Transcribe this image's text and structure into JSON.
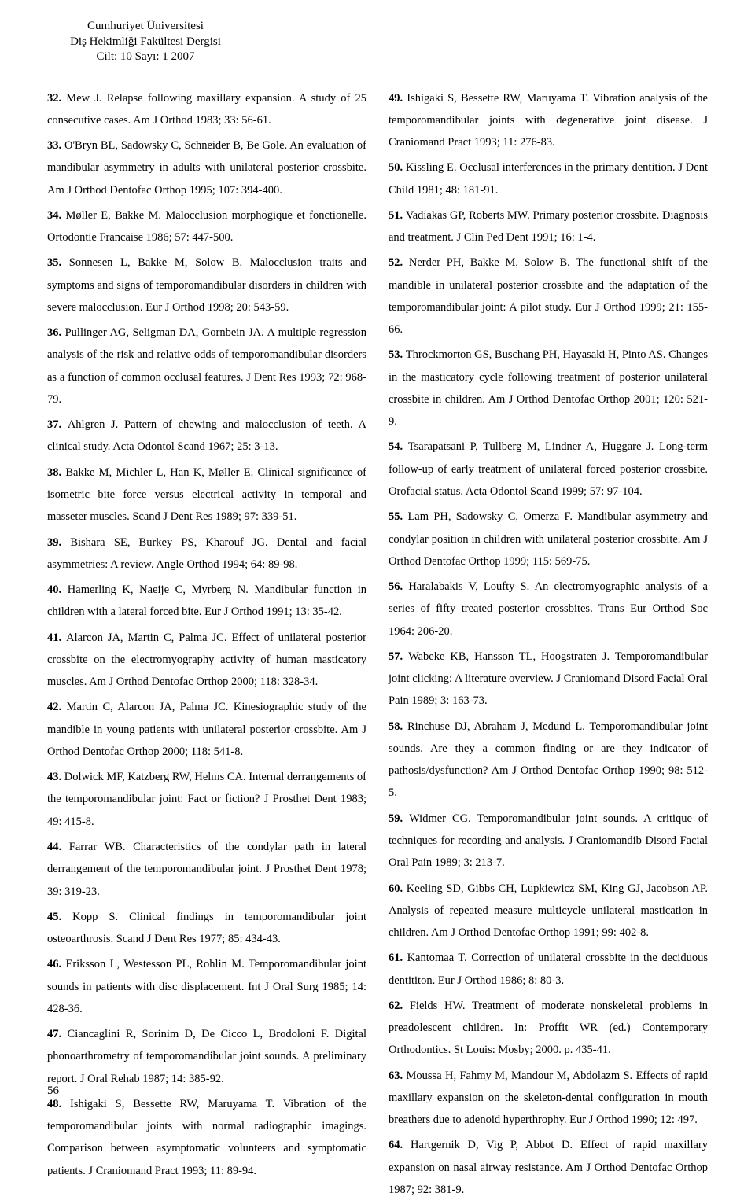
{
  "header": {
    "line1": "Cumhuriyet Üniversitesi",
    "line2": "Diş Hekimliği Fakültesi Dergisi",
    "line3": "Cilt: 10 Sayı: 1  2007"
  },
  "left": [
    {
      "n": "32.",
      "t": "Mew J. Relapse following maxillary expansion. A study of 25 consecutive cases. Am J Orthod 1983; 33: 56-61."
    },
    {
      "n": "33.",
      "t": "O'Bryn BL, Sadowsky C, Schneider B, Be Gole. An evaluation of mandibular asymmetry in adults with unilateral posterior crossbite. Am J Orthod Dentofac Orthop 1995; 107: 394-400."
    },
    {
      "n": "34.",
      "t": "Møller E, Bakke M. Malocclusion morphogique et fonctionelle. Ortodontie Francaise 1986; 57: 447-500."
    },
    {
      "n": "35.",
      "t": "Sonnesen L, Bakke M, Solow B. Malocclusion traits and symptoms and signs of temporomandibular disorders in children with severe malocclusion. Eur J Orthod 1998; 20: 543-59."
    },
    {
      "n": "36.",
      "t": "Pullinger AG, Seligman DA, Gornbein JA. A multiple regression analysis of the risk and relative odds of temporomandibular disorders as a function of common occlusal features. J Dent Res 1993; 72: 968-79."
    },
    {
      "n": "37.",
      "t": "Ahlgren J. Pattern of chewing and malocclusion of teeth. A clinical study. Acta Odontol Scand 1967; 25: 3-13."
    },
    {
      "n": "38.",
      "t": "Bakke M, Michler L, Han K, Møller E. Clinical significance of isometric bite force versus electrical activity in temporal and masseter muscles. Scand J Dent Res 1989; 97: 339-51."
    },
    {
      "n": "39.",
      "t": "Bishara SE, Burkey PS, Kharouf JG. Dental and facial asymmetries: A review. Angle Orthod 1994; 64: 89-98."
    },
    {
      "n": "40.",
      "t": "Hamerling K, Naeije C, Myrberg N. Mandibular function in children with a lateral forced bite. Eur J Orthod 1991; 13: 35-42."
    },
    {
      "n": "41.",
      "t": "Alarcon JA, Martin C, Palma JC. Effect of unilateral posterior crossbite on the electromyography activity of human masticatory muscles. Am J Orthod Dentofac Orthop 2000; 118: 328-34."
    },
    {
      "n": "42.",
      "t": "Martin C, Alarcon JA, Palma JC. Kinesiographic study of the mandible in young patients with unilateral posterior crossbite. Am J Orthod Dentofac Orthop 2000; 118: 541-8."
    },
    {
      "n": "43.",
      "t": "Dolwick MF, Katzberg RW, Helms CA. Internal derrangements of the temporomandibular joint: Fact or fiction? J Prosthet Dent 1983; 49: 415-8."
    },
    {
      "n": "44.",
      "t": "Farrar WB. Characteristics of the condylar path in lateral derrangement of the temporomandibular joint. J Prosthet Dent 1978; 39: 319-23."
    },
    {
      "n": "45.",
      "t": "Kopp S. Clinical findings in temporomandibular joint osteoarthrosis. Scand J Dent Res 1977; 85: 434-43."
    },
    {
      "n": "46.",
      "t": "Eriksson L, Westesson PL, Rohlin M. Temporomandibular joint sounds in patients with disc displacement. Int J Oral Surg 1985; 14: 428-36."
    },
    {
      "n": "47.",
      "t": "Ciancaglini R, Sorinim D, De Cicco L, Brodoloni F. Digital phonoarthrometry of temporomandibular joint sounds. A preliminary report. J Oral Rehab 1987; 14: 385-92."
    },
    {
      "n": "48.",
      "t": "Ishigaki S, Bessette RW, Maruyama T. Vibration of the temporomandibular joints with normal radiographic imagings. Comparison between asymptomatic volunteers and symptomatic patients. J Craniomand Pract 1993; 11: 89-94."
    }
  ],
  "right": [
    {
      "n": "49.",
      "t": "Ishigaki S, Bessette RW, Maruyama T. Vibration analysis of the temporomandibular joints with degenerative joint disease. J Craniomand Pract 1993; 11: 276-83."
    },
    {
      "n": "50.",
      "t": "Kissling E. Occlusal interferences in the primary dentition. J Dent Child 1981; 48: 181-91."
    },
    {
      "n": "51.",
      "t": "Vadiakas GP, Roberts MW. Primary posterior crossbite. Diagnosis and treatment. J Clin Ped Dent 1991; 16: 1-4."
    },
    {
      "n": "52.",
      "t": "Nerder PH, Bakke M, Solow B. The functional shift of the mandible in unilateral posterior crossbite and the adaptation of the temporomandibular joint: A pilot study. Eur J Orthod 1999; 21: 155-66."
    },
    {
      "n": "53.",
      "t": "Throckmorton GS, Buschang PH, Hayasaki H, Pinto AS. Changes in the masticatory cycle following treatment of posterior unilateral crossbite in children. Am J Orthod Dentofac Orthop 2001; 120: 521-9."
    },
    {
      "n": "54.",
      "t": "Tsarapatsani P, Tullberg M, Lindner A, Huggare J. Long-term follow-up of early treatment of unilateral forced posterior crossbite. Orofacial status. Acta Odontol Scand 1999; 57: 97-104."
    },
    {
      "n": "55.",
      "t": "Lam PH, Sadowsky C, Omerza F. Mandibular asymmetry and condylar position in children with unilateral posterior crossbite. Am J Orthod Dentofac Orthop 1999; 115: 569-75."
    },
    {
      "n": "56.",
      "t": "Haralabakis V, Loufty S. An electromyographic analysis of a series of fifty treated posterior crossbites. Trans Eur Orthod Soc 1964: 206-20."
    },
    {
      "n": "57.",
      "t": "Wabeke KB, Hansson TL, Hoogstraten J. Temporomandibular joint clicking: A literature overview. J Craniomand Disord Facial Oral Pain 1989; 3: 163-73."
    },
    {
      "n": "58.",
      "t": "Rinchuse DJ, Abraham J, Medund L. Temporomandibular joint sounds. Are they a common finding or are they indicator of pathosis/dysfunction? Am J Orthod Dentofac Orthop 1990; 98: 512-5."
    },
    {
      "n": "59.",
      "t": "Widmer CG. Temporomandibular joint sounds. A critique of techniques for recording and analysis. J Craniomandib Disord Facial Oral Pain 1989; 3: 213-7."
    },
    {
      "n": "60.",
      "t": "Keeling SD, Gibbs CH, Lupkiewicz SM, King GJ, Jacobson AP. Analysis of repeated measure multicycle unilateral mastication in children. Am J Orthod Dentofac Orthop 1991; 99: 402-8."
    },
    {
      "n": "61.",
      "t": "Kantomaa T. Correction of unilateral crossbite in the deciduous dentititon. Eur J Orthod 1986; 8: 80-3."
    },
    {
      "n": "62.",
      "t": "Fields HW. Treatment of moderate nonskeletal problems in preadolescent children. In: Proffit WR (ed.) Contemporary Orthodontics. St Louis: Mosby; 2000. p. 435-41."
    },
    {
      "n": "63.",
      "t": "Moussa H, Fahmy M, Mandour M, Abdolazm S. Effects of rapid maxillary expansion on the skeleton-dental configuration in mouth breathers due to adenoid hyperthrophy. Eur J Orthod 1990; 12: 497."
    },
    {
      "n": "64.",
      "t": "Hartgernik D, Vig P, Abbot D. Effect of rapid maxillary expansion on nasal airway resistance. Am J Orthod Dentofac Orthop 1987; 92: 381-9."
    }
  ],
  "page": "56"
}
